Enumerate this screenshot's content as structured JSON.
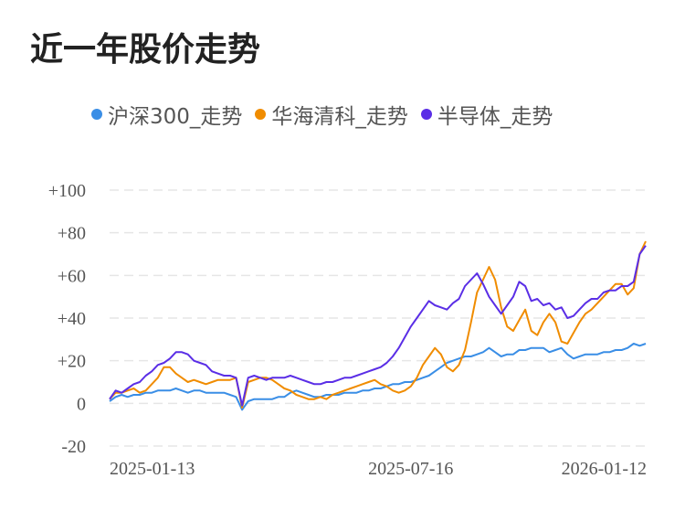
{
  "title": "近一年股价走势",
  "chart_data": {
    "type": "line",
    "title": "近一年股价走势",
    "xlabel": "",
    "ylabel": "",
    "ylim": [
      -20,
      100
    ],
    "yticks": [
      {
        "value": 100,
        "label": "+100"
      },
      {
        "value": 80,
        "label": "+80"
      },
      {
        "value": 60,
        "label": "+60"
      },
      {
        "value": 40,
        "label": "+40"
      },
      {
        "value": 20,
        "label": "+20"
      },
      {
        "value": 0,
        "label": "0"
      },
      {
        "value": -20,
        "label": "-20"
      }
    ],
    "xticks": [
      {
        "index": 10,
        "label": "2025-01-13"
      },
      {
        "index": 50,
        "label": "2025-07-16"
      },
      {
        "index": 89,
        "label": "2026-01-12"
      }
    ],
    "grid": true,
    "legend_position": "top-left",
    "series": [
      {
        "name": "沪深300_走势",
        "color": "#3a8ee6",
        "values": [
          1,
          3,
          4,
          3,
          4,
          4,
          5,
          5,
          6,
          6,
          6,
          7,
          6,
          5,
          6,
          6,
          5,
          5,
          5,
          5,
          4,
          3,
          -3,
          1,
          2,
          2,
          2,
          2,
          3,
          3,
          5,
          6,
          5,
          4,
          3,
          3,
          4,
          4,
          4,
          5,
          5,
          5,
          6,
          6,
          7,
          7,
          8,
          9,
          9,
          10,
          10,
          11,
          12,
          13,
          15,
          17,
          19,
          20,
          21,
          22,
          22,
          23,
          24,
          26,
          24,
          22,
          23,
          23,
          25,
          25,
          26,
          26,
          26,
          24,
          25,
          26,
          23,
          21,
          22,
          23,
          23,
          23,
          24,
          24,
          25,
          25,
          26,
          28,
          27,
          28
        ]
      },
      {
        "name": "华海清科_走势",
        "color": "#f08c00",
        "values": [
          2,
          5,
          5,
          6,
          7,
          5,
          6,
          9,
          12,
          17,
          17,
          14,
          12,
          10,
          11,
          10,
          9,
          10,
          11,
          11,
          11,
          12,
          -2,
          10,
          11,
          12,
          12,
          11,
          9,
          7,
          6,
          4,
          3,
          2,
          2,
          3,
          2,
          4,
          5,
          6,
          7,
          8,
          9,
          10,
          11,
          9,
          8,
          6,
          5,
          6,
          8,
          12,
          18,
          22,
          26,
          23,
          17,
          15,
          18,
          25,
          38,
          52,
          58,
          64,
          58,
          45,
          36,
          34,
          39,
          44,
          34,
          32,
          38,
          42,
          38,
          29,
          28,
          33,
          38,
          42,
          44,
          47,
          50,
          53,
          56,
          56,
          51,
          54,
          70,
          76
        ]
      },
      {
        "name": "半导体_走势",
        "color": "#5a2ee6",
        "values": [
          2,
          6,
          5,
          7,
          9,
          10,
          13,
          15,
          18,
          19,
          21,
          24,
          24,
          23,
          20,
          19,
          18,
          15,
          14,
          13,
          13,
          12,
          -1,
          12,
          13,
          12,
          11,
          12,
          12,
          12,
          13,
          12,
          11,
          10,
          9,
          9,
          10,
          10,
          11,
          12,
          12,
          13,
          14,
          15,
          16,
          17,
          19,
          22,
          26,
          31,
          36,
          40,
          44,
          48,
          46,
          45,
          44,
          47,
          49,
          55,
          58,
          61,
          56,
          50,
          46,
          42,
          46,
          50,
          57,
          55,
          48,
          49,
          46,
          47,
          44,
          45,
          40,
          41,
          44,
          47,
          49,
          49,
          52,
          53,
          53,
          55,
          55,
          57,
          70,
          74
        ]
      }
    ]
  }
}
